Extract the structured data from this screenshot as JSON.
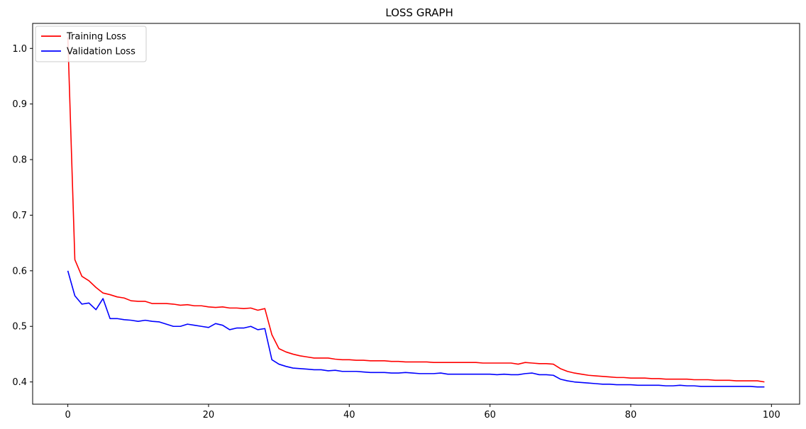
{
  "chart_data": {
    "type": "line",
    "title": "LOSS GRAPH",
    "xlabel": "",
    "ylabel": "",
    "xlim": [
      -5,
      104
    ],
    "ylim": [
      0.36,
      1.045
    ],
    "xticks": [
      0,
      20,
      40,
      60,
      80,
      100
    ],
    "yticks": [
      0.4,
      0.5,
      0.6,
      0.7,
      0.8,
      0.9,
      1.0
    ],
    "xtick_labels": [
      "0",
      "20",
      "40",
      "60",
      "80",
      "100"
    ],
    "ytick_labels": [
      "0.4",
      "0.5",
      "0.6",
      "0.7",
      "0.8",
      "0.9",
      "1.0"
    ],
    "grid": false,
    "legend_position": "top-left",
    "x": [
      0,
      1,
      2,
      3,
      4,
      5,
      6,
      7,
      8,
      9,
      10,
      11,
      12,
      13,
      14,
      15,
      16,
      17,
      18,
      19,
      20,
      21,
      22,
      23,
      24,
      25,
      26,
      27,
      28,
      29,
      30,
      31,
      32,
      33,
      34,
      35,
      36,
      37,
      38,
      39,
      40,
      41,
      42,
      43,
      44,
      45,
      46,
      47,
      48,
      49,
      50,
      51,
      52,
      53,
      54,
      55,
      56,
      57,
      58,
      59,
      60,
      61,
      62,
      63,
      64,
      65,
      66,
      67,
      68,
      69,
      70,
      71,
      72,
      73,
      74,
      75,
      76,
      77,
      78,
      79,
      80,
      81,
      82,
      83,
      84,
      85,
      86,
      87,
      88,
      89,
      90,
      91,
      92,
      93,
      94,
      95,
      96,
      97,
      98,
      99
    ],
    "series": [
      {
        "name": "Training Loss",
        "color": "#ff0000",
        "values": [
          1.02,
          0.62,
          0.59,
          0.582,
          0.57,
          0.56,
          0.557,
          0.553,
          0.551,
          0.546,
          0.545,
          0.545,
          0.541,
          0.541,
          0.541,
          0.54,
          0.538,
          0.539,
          0.537,
          0.537,
          0.535,
          0.534,
          0.535,
          0.533,
          0.533,
          0.532,
          0.533,
          0.529,
          0.532,
          0.485,
          0.46,
          0.454,
          0.45,
          0.447,
          0.445,
          0.443,
          0.443,
          0.443,
          0.441,
          0.44,
          0.44,
          0.439,
          0.439,
          0.438,
          0.438,
          0.438,
          0.437,
          0.437,
          0.436,
          0.436,
          0.436,
          0.436,
          0.435,
          0.435,
          0.435,
          0.435,
          0.435,
          0.435,
          0.435,
          0.434,
          0.434,
          0.434,
          0.434,
          0.434,
          0.432,
          0.435,
          0.434,
          0.433,
          0.433,
          0.432,
          0.424,
          0.419,
          0.416,
          0.414,
          0.412,
          0.411,
          0.41,
          0.409,
          0.408,
          0.408,
          0.407,
          0.407,
          0.407,
          0.406,
          0.406,
          0.405,
          0.405,
          0.405,
          0.405,
          0.404,
          0.404,
          0.404,
          0.403,
          0.403,
          0.403,
          0.402,
          0.402,
          0.402,
          0.402,
          0.4
        ]
      },
      {
        "name": "Validation Loss",
        "color": "#0000ff",
        "values": [
          0.6,
          0.555,
          0.54,
          0.542,
          0.53,
          0.55,
          0.514,
          0.514,
          0.512,
          0.511,
          0.509,
          0.511,
          0.509,
          0.508,
          0.504,
          0.5,
          0.5,
          0.504,
          0.502,
          0.5,
          0.498,
          0.505,
          0.502,
          0.494,
          0.497,
          0.497,
          0.5,
          0.494,
          0.496,
          0.44,
          0.432,
          0.428,
          0.425,
          0.424,
          0.423,
          0.422,
          0.422,
          0.42,
          0.421,
          0.419,
          0.419,
          0.419,
          0.418,
          0.417,
          0.417,
          0.417,
          0.416,
          0.416,
          0.417,
          0.416,
          0.415,
          0.415,
          0.415,
          0.416,
          0.414,
          0.414,
          0.414,
          0.414,
          0.414,
          0.414,
          0.414,
          0.413,
          0.414,
          0.413,
          0.413,
          0.415,
          0.416,
          0.413,
          0.413,
          0.412,
          0.405,
          0.402,
          0.4,
          0.399,
          0.398,
          0.397,
          0.396,
          0.396,
          0.395,
          0.395,
          0.395,
          0.394,
          0.394,
          0.394,
          0.394,
          0.393,
          0.393,
          0.394,
          0.393,
          0.393,
          0.392,
          0.392,
          0.392,
          0.392,
          0.392,
          0.392,
          0.392,
          0.392,
          0.391,
          0.391
        ]
      }
    ]
  }
}
